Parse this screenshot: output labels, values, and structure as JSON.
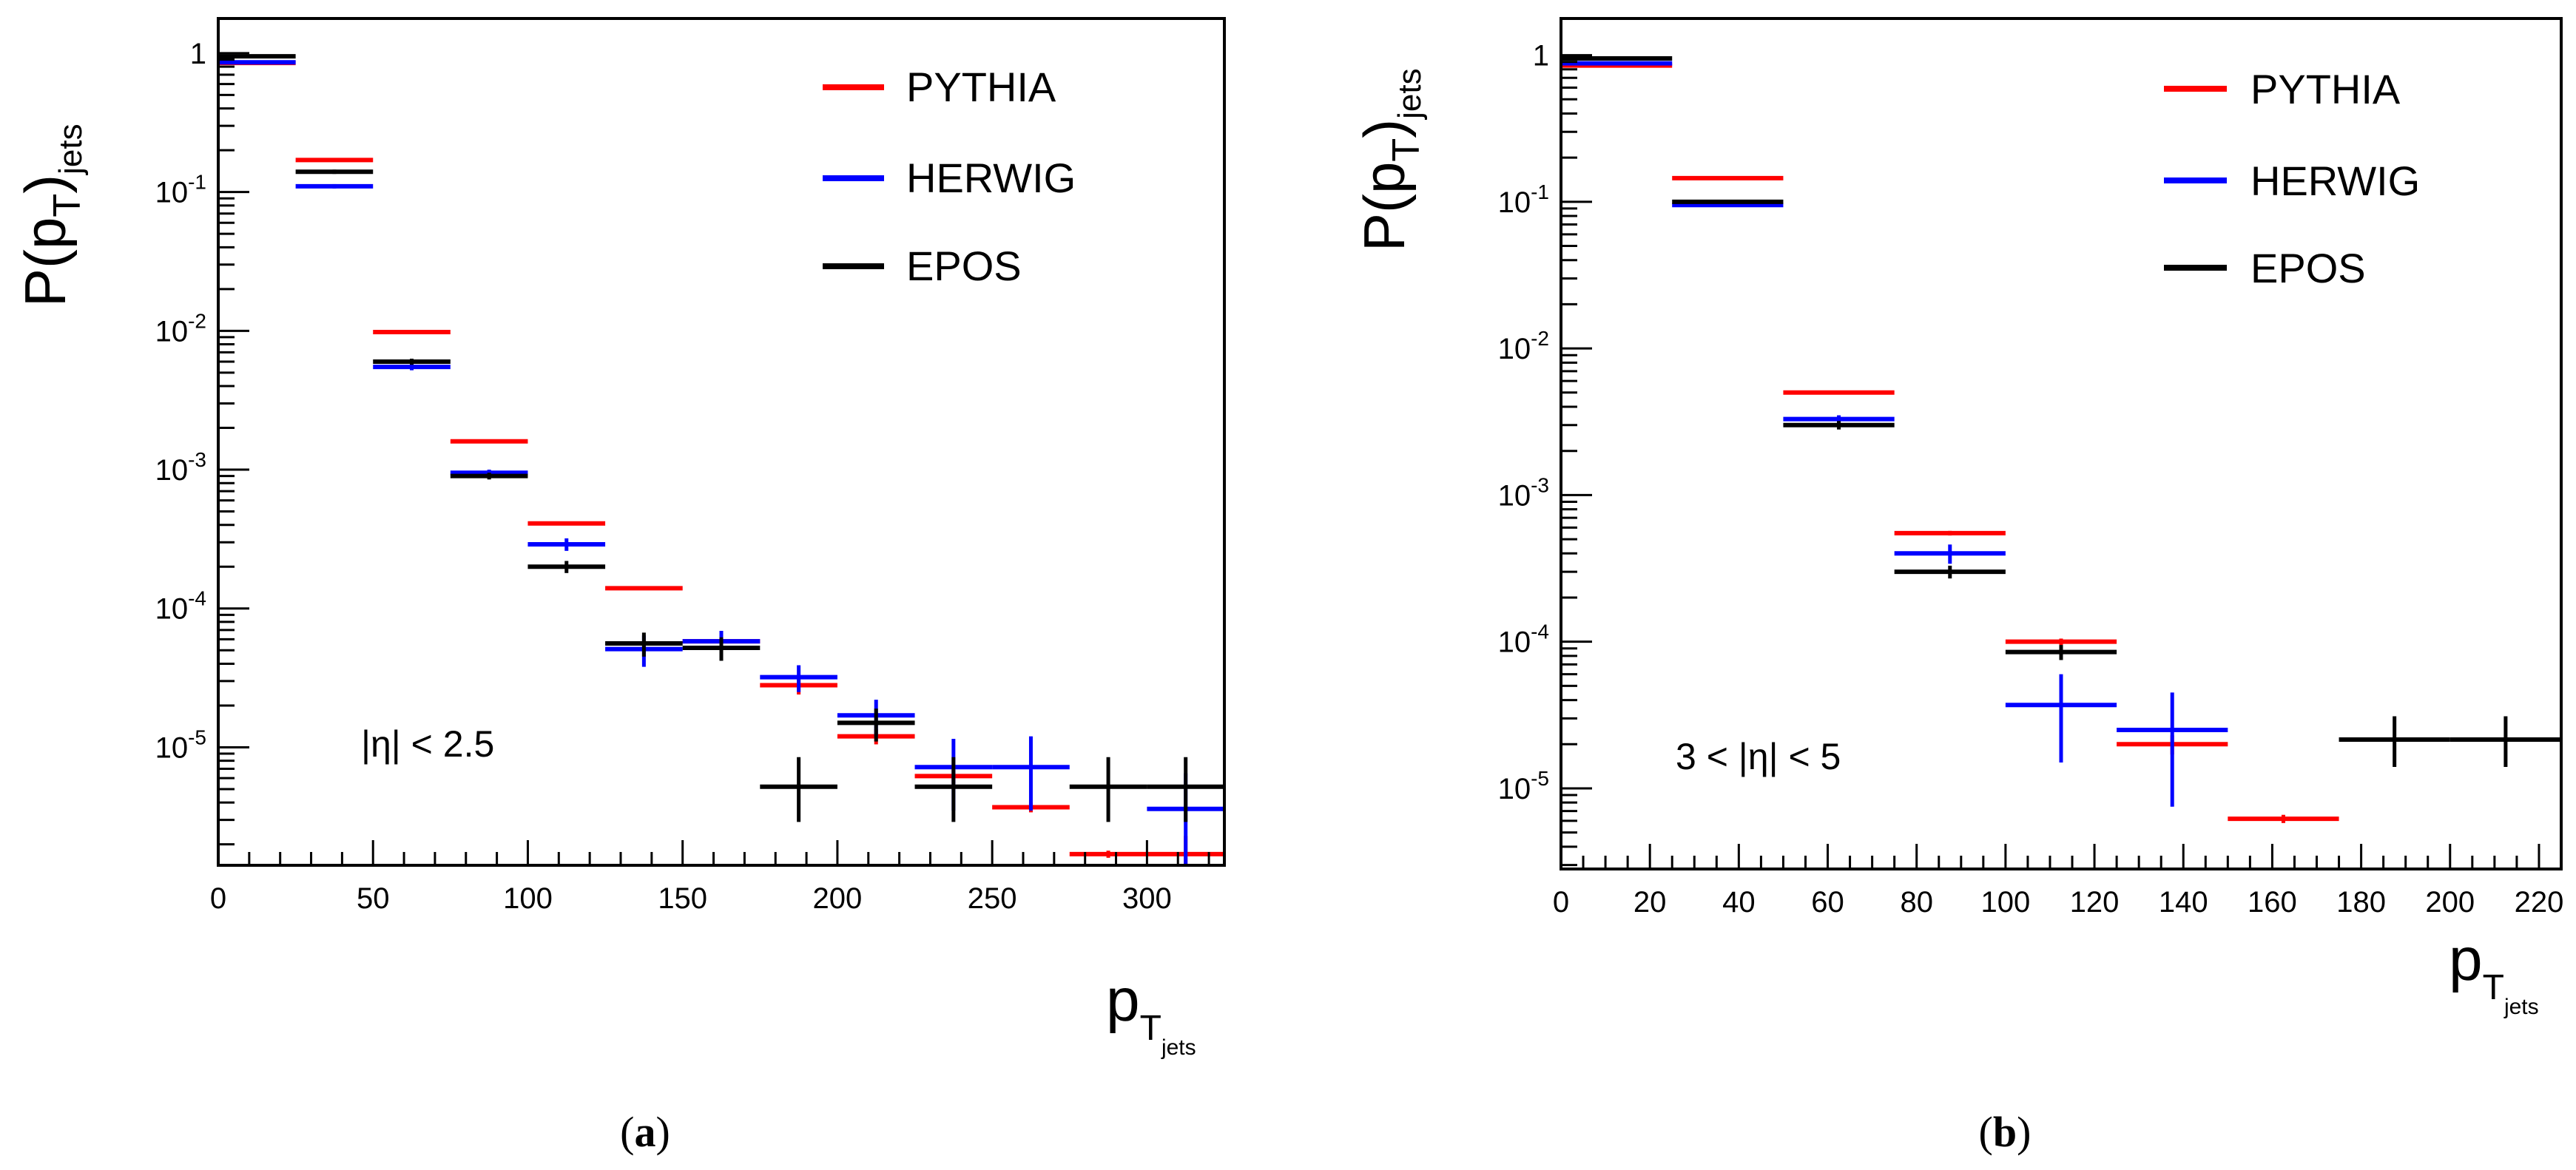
{
  "chart_data": [
    {
      "id": "a",
      "type": "scatter",
      "panel_label": "a",
      "xlim": [
        0,
        325
      ],
      "ylim_log10": [
        -5.85,
        0.25
      ],
      "x_ticks": [
        0,
        50,
        100,
        150,
        200,
        250,
        300
      ],
      "x_tick_labels": [
        "0",
        "50",
        "100",
        "150",
        "200",
        "250",
        "300"
      ],
      "y_ticks": [
        {
          "exp": 0,
          "base": "1",
          "sup": ""
        },
        {
          "exp": -1,
          "base": "10",
          "sup": "-1"
        },
        {
          "exp": -2,
          "base": "10",
          "sup": "-2"
        },
        {
          "exp": -3,
          "base": "10",
          "sup": "-3"
        },
        {
          "exp": -4,
          "base": "10",
          "sup": "-4"
        },
        {
          "exp": -5,
          "base": "10",
          "sup": "-5"
        }
      ],
      "ylabel": {
        "main": "P(p",
        "sub": "T",
        "close": ")",
        "sub2": "jets"
      },
      "xlabel": {
        "main": "p",
        "sub": "T",
        "sub2": "jets"
      },
      "annotation": "|η| < 2.5",
      "legend": [
        {
          "name": "PYTHIA",
          "color": "#ff0000"
        },
        {
          "name": "HERWIG",
          "color": "#0000ff"
        },
        {
          "name": "EPOS",
          "color": "#000000"
        }
      ],
      "series": [
        {
          "name": "PYTHIA",
          "color": "#ff0000",
          "points": [
            {
              "x": 12.5,
              "y": 0.85,
              "lo": 0.84,
              "hi": 0.86
            },
            {
              "x": 37.5,
              "y": 0.17,
              "lo": 0.165,
              "hi": 0.175
            },
            {
              "x": 62.5,
              "y": 0.0098,
              "lo": 0.0095,
              "hi": 0.0101
            },
            {
              "x": 87.5,
              "y": 0.0016,
              "lo": 0.00155,
              "hi": 0.00165
            },
            {
              "x": 112.5,
              "y": 0.00041,
              "lo": 0.0004,
              "hi": 0.00042
            },
            {
              "x": 137.5,
              "y": 0.00014,
              "lo": 0.000137,
              "hi": 0.000143
            },
            {
              "x": 162.5,
              "y": 5.8e-05,
              "lo": 5.3e-05,
              "hi": 6.3e-05
            },
            {
              "x": 187.5,
              "y": 2.8e-05,
              "lo": 2.4e-05,
              "hi": 3.2e-05
            },
            {
              "x": 212.5,
              "y": 1.2e-05,
              "lo": 1.05e-05,
              "hi": 1.35e-05
            },
            {
              "x": 237.5,
              "y": 6.2e-06,
              "lo": 5.5e-06,
              "hi": 6.9e-06
            },
            {
              "x": 262.5,
              "y": 3.7e-06,
              "lo": 3.4e-06,
              "hi": 4e-06
            },
            {
              "x": 287.5,
              "y": 1.7e-06,
              "lo": 1.6e-06,
              "hi": 1.8e-06
            },
            {
              "x": 312.5,
              "y": 1.7e-06,
              "lo": 1.1e-06,
              "hi": 2.3e-06
            }
          ]
        },
        {
          "name": "HERWIG",
          "color": "#0000ff",
          "points": [
            {
              "x": 12.5,
              "y": 0.86,
              "lo": 0.85,
              "hi": 0.87
            },
            {
              "x": 37.5,
              "y": 0.11,
              "lo": 0.106,
              "hi": 0.114
            },
            {
              "x": 62.5,
              "y": 0.0055,
              "lo": 0.0052,
              "hi": 0.0058
            },
            {
              "x": 87.5,
              "y": 0.00095,
              "lo": 0.0009,
              "hi": 0.001
            },
            {
              "x": 112.5,
              "y": 0.00029,
              "lo": 0.00026,
              "hi": 0.00032
            },
            {
              "x": 137.5,
              "y": 5.1e-05,
              "lo": 3.8e-05,
              "hi": 6.4e-05
            },
            {
              "x": 162.5,
              "y": 5.8e-05,
              "lo": 4.7e-05,
              "hi": 6.9e-05
            },
            {
              "x": 187.5,
              "y": 3.2e-05,
              "lo": 2.5e-05,
              "hi": 3.9e-05
            },
            {
              "x": 212.5,
              "y": 1.7e-05,
              "lo": 1.2e-05,
              "hi": 2.2e-05
            },
            {
              "x": 237.5,
              "y": 7.2e-06,
              "lo": 3.5e-06,
              "hi": 1.15e-05
            },
            {
              "x": 262.5,
              "y": 7.2e-06,
              "lo": 3.5e-06,
              "hi": 1.2e-05
            },
            {
              "x": 312.5,
              "y": 3.6e-06,
              "lo": 1.3e-06,
              "hi": 6.5e-06
            }
          ]
        },
        {
          "name": "EPOS",
          "color": "#000000",
          "points": [
            {
              "x": 12.5,
              "y": 0.95,
              "lo": 0.94,
              "hi": 0.96
            },
            {
              "x": 37.5,
              "y": 0.14,
              "lo": 0.135,
              "hi": 0.145
            },
            {
              "x": 62.5,
              "y": 0.006,
              "lo": 0.0057,
              "hi": 0.0063
            },
            {
              "x": 87.5,
              "y": 0.0009,
              "lo": 0.00085,
              "hi": 0.00095
            },
            {
              "x": 112.5,
              "y": 0.0002,
              "lo": 0.00018,
              "hi": 0.00022
            },
            {
              "x": 137.5,
              "y": 5.6e-05,
              "lo": 4.5e-05,
              "hi": 6.7e-05
            },
            {
              "x": 162.5,
              "y": 5.2e-05,
              "lo": 4.2e-05,
              "hi": 6.2e-05
            },
            {
              "x": 187.5,
              "y": 5.2e-06,
              "lo": 2.9e-06,
              "hi": 8.5e-06
            },
            {
              "x": 212.5,
              "y": 1.5e-05,
              "lo": 1.1e-05,
              "hi": 1.9e-05
            },
            {
              "x": 237.5,
              "y": 5.2e-06,
              "lo": 2.9e-06,
              "hi": 8.5e-06
            },
            {
              "x": 287.5,
              "y": 5.2e-06,
              "lo": 2.9e-06,
              "hi": 8.5e-06
            },
            {
              "x": 312.5,
              "y": 5.2e-06,
              "lo": 2.9e-06,
              "hi": 8.5e-06
            }
          ]
        }
      ]
    },
    {
      "id": "b",
      "type": "scatter",
      "panel_label": "b",
      "xlim": [
        0,
        225
      ],
      "ylim_log10": [
        -5.55,
        0.25
      ],
      "x_ticks": [
        0,
        20,
        40,
        60,
        80,
        100,
        120,
        140,
        160,
        180,
        200,
        220
      ],
      "x_tick_labels": [
        "0",
        "20",
        "40",
        "60",
        "80",
        "100",
        "120",
        "140",
        "160",
        "180",
        "200",
        "220"
      ],
      "y_ticks": [
        {
          "exp": 0,
          "base": "1",
          "sup": ""
        },
        {
          "exp": -1,
          "base": "10",
          "sup": "-1"
        },
        {
          "exp": -2,
          "base": "10",
          "sup": "-2"
        },
        {
          "exp": -3,
          "base": "10",
          "sup": "-3"
        },
        {
          "exp": -4,
          "base": "10",
          "sup": "-4"
        },
        {
          "exp": -5,
          "base": "10",
          "sup": "-5"
        }
      ],
      "ylabel": {
        "main": "P(p",
        "sub": "T",
        "close": ")",
        "sub2": "jets"
      },
      "xlabel": {
        "main": "p",
        "sub": "T",
        "sub2": "jets"
      },
      "annotation": "3 < |η| < 5",
      "legend": [
        {
          "name": "PYTHIA",
          "color": "#ff0000"
        },
        {
          "name": "HERWIG",
          "color": "#0000ff"
        },
        {
          "name": "EPOS",
          "color": "#000000"
        }
      ],
      "series": [
        {
          "name": "PYTHIA",
          "color": "#ff0000",
          "points": [
            {
              "x": 12.5,
              "y": 0.85,
              "lo": 0.84,
              "hi": 0.86
            },
            {
              "x": 37.5,
              "y": 0.145,
              "lo": 0.142,
              "hi": 0.148
            },
            {
              "x": 62.5,
              "y": 0.005,
              "lo": 0.0049,
              "hi": 0.0051
            },
            {
              "x": 87.5,
              "y": 0.00055,
              "lo": 0.00053,
              "hi": 0.00057
            },
            {
              "x": 112.5,
              "y": 0.0001,
              "lo": 9.5e-05,
              "hi": 0.000105
            },
            {
              "x": 137.5,
              "y": 2e-05,
              "lo": 1.7e-05,
              "hi": 2.3e-05
            },
            {
              "x": 162.5,
              "y": 6.2e-06,
              "lo": 5.8e-06,
              "hi": 6.6e-06
            }
          ]
        },
        {
          "name": "HERWIG",
          "color": "#0000ff",
          "points": [
            {
              "x": 12.5,
              "y": 0.88,
              "lo": 0.87,
              "hi": 0.89
            },
            {
              "x": 37.5,
              "y": 0.095,
              "lo": 0.093,
              "hi": 0.097
            },
            {
              "x": 62.5,
              "y": 0.0033,
              "lo": 0.0031,
              "hi": 0.0035
            },
            {
              "x": 87.5,
              "y": 0.0004,
              "lo": 0.00034,
              "hi": 0.00046
            },
            {
              "x": 112.5,
              "y": 3.7e-05,
              "lo": 1.5e-05,
              "hi": 6e-05
            },
            {
              "x": 137.5,
              "y": 2.5e-05,
              "lo": 7.5e-06,
              "hi": 4.5e-05
            }
          ]
        },
        {
          "name": "EPOS",
          "color": "#000000",
          "points": [
            {
              "x": 12.5,
              "y": 0.95,
              "lo": 0.94,
              "hi": 0.96
            },
            {
              "x": 37.5,
              "y": 0.1,
              "lo": 0.097,
              "hi": 0.103
            },
            {
              "x": 62.5,
              "y": 0.003,
              "lo": 0.0028,
              "hi": 0.0032
            },
            {
              "x": 87.5,
              "y": 0.0003,
              "lo": 0.00027,
              "hi": 0.00033
            },
            {
              "x": 112.5,
              "y": 8.5e-05,
              "lo": 7.5e-05,
              "hi": 9.5e-05
            },
            {
              "x": 187.5,
              "y": 2.15e-05,
              "lo": 1.4e-05,
              "hi": 3.1e-05
            },
            {
              "x": 212.5,
              "y": 2.15e-05,
              "lo": 1.4e-05,
              "hi": 3.1e-05
            }
          ]
        }
      ]
    }
  ],
  "captions": [
    {
      "open": "(",
      "letter": "a",
      "close": ")"
    },
    {
      "open": "(",
      "letter": "b",
      "close": ")"
    }
  ]
}
